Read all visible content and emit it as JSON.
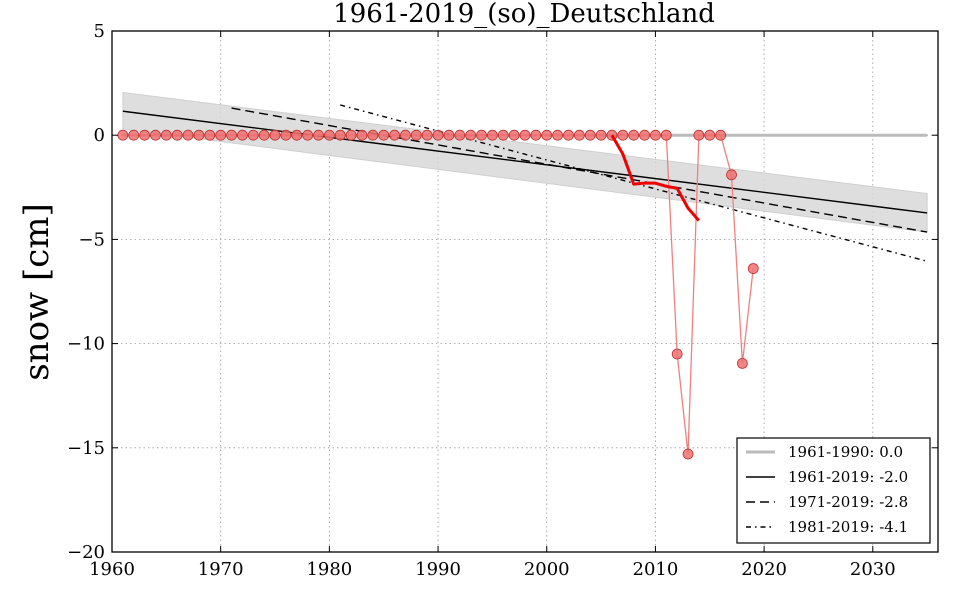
{
  "chart_data": {
    "type": "line",
    "title": "1961-2019_(so)_Deutschland",
    "xlabel": "",
    "ylabel": "snow [cm]",
    "xlim": [
      1960,
      2036
    ],
    "ylim": [
      -20,
      5
    ],
    "x_ticks": [
      1960,
      1970,
      1980,
      1990,
      2000,
      2010,
      2020,
      2030
    ],
    "y_ticks": [
      5,
      0,
      -5,
      -10,
      -15,
      -20
    ],
    "y_tick_labels": [
      "5",
      "0",
      "−5",
      "−10",
      "−15",
      "−20"
    ],
    "grid": true,
    "legend_position": "bottom-right",
    "colors": {
      "points": "#f07070",
      "points_edge": "#c03030",
      "points_line": "#f08080",
      "rolling": "#ee0000",
      "baseline": "#bbbbbb",
      "trend": "#000000",
      "band": "#d8d8d8"
    },
    "observations": {
      "x": [
        1961,
        1962,
        1963,
        1964,
        1965,
        1966,
        1967,
        1968,
        1969,
        1970,
        1971,
        1972,
        1973,
        1974,
        1975,
        1976,
        1977,
        1978,
        1979,
        1980,
        1981,
        1982,
        1983,
        1984,
        1985,
        1986,
        1987,
        1988,
        1989,
        1990,
        1991,
        1992,
        1993,
        1994,
        1995,
        1996,
        1997,
        1998,
        1999,
        2000,
        2001,
        2002,
        2003,
        2004,
        2005,
        2006,
        2007,
        2008,
        2009,
        2010,
        2011,
        2012,
        2013,
        2014,
        2015,
        2016,
        2017,
        2018,
        2019
      ],
      "y": [
        0,
        0,
        0,
        0,
        0,
        0,
        0,
        0,
        0,
        0,
        0,
        0,
        0,
        0,
        0,
        0,
        0,
        0,
        0,
        0,
        0,
        0,
        0,
        0,
        0,
        0,
        0,
        0,
        0,
        0,
        0,
        0,
        0,
        0,
        0,
        0,
        0,
        0,
        0,
        0,
        0,
        0,
        0,
        0,
        0,
        0,
        0,
        0,
        0,
        0,
        0,
        -10.5,
        -15.3,
        0,
        0,
        0,
        -1.9,
        -10.95,
        -6.4
      ]
    },
    "rolling_mean": {
      "x": [
        2006,
        2007,
        2008,
        2009,
        2010,
        2011,
        2012,
        2013,
        2014
      ],
      "y": [
        0,
        -0.9,
        -2.35,
        -2.3,
        -2.3,
        -2.45,
        -2.55,
        -3.5,
        -4.1
      ]
    },
    "uncertainty_band": {
      "x": [
        1961,
        2035
      ],
      "upper": [
        2.05,
        -2.8
      ],
      "lower": [
        0.3,
        -4.65
      ]
    },
    "series": [
      {
        "name": "1961-1990: 0.0",
        "style": "baseline",
        "x": [
          1961,
          2035
        ],
        "y": [
          0,
          0
        ]
      },
      {
        "name": "1961-2019: -2.0",
        "style": "solid",
        "x": [
          1961,
          2035
        ],
        "y": [
          1.15,
          -3.73
        ]
      },
      {
        "name": "1971-2019: -2.8",
        "style": "dashed",
        "x": [
          1971,
          2035
        ],
        "y": [
          1.3,
          -4.65
        ]
      },
      {
        "name": "1981-2019: -4.1",
        "style": "dashdot",
        "x": [
          1981,
          2035
        ],
        "y": [
          1.45,
          -6.05
        ]
      }
    ]
  }
}
